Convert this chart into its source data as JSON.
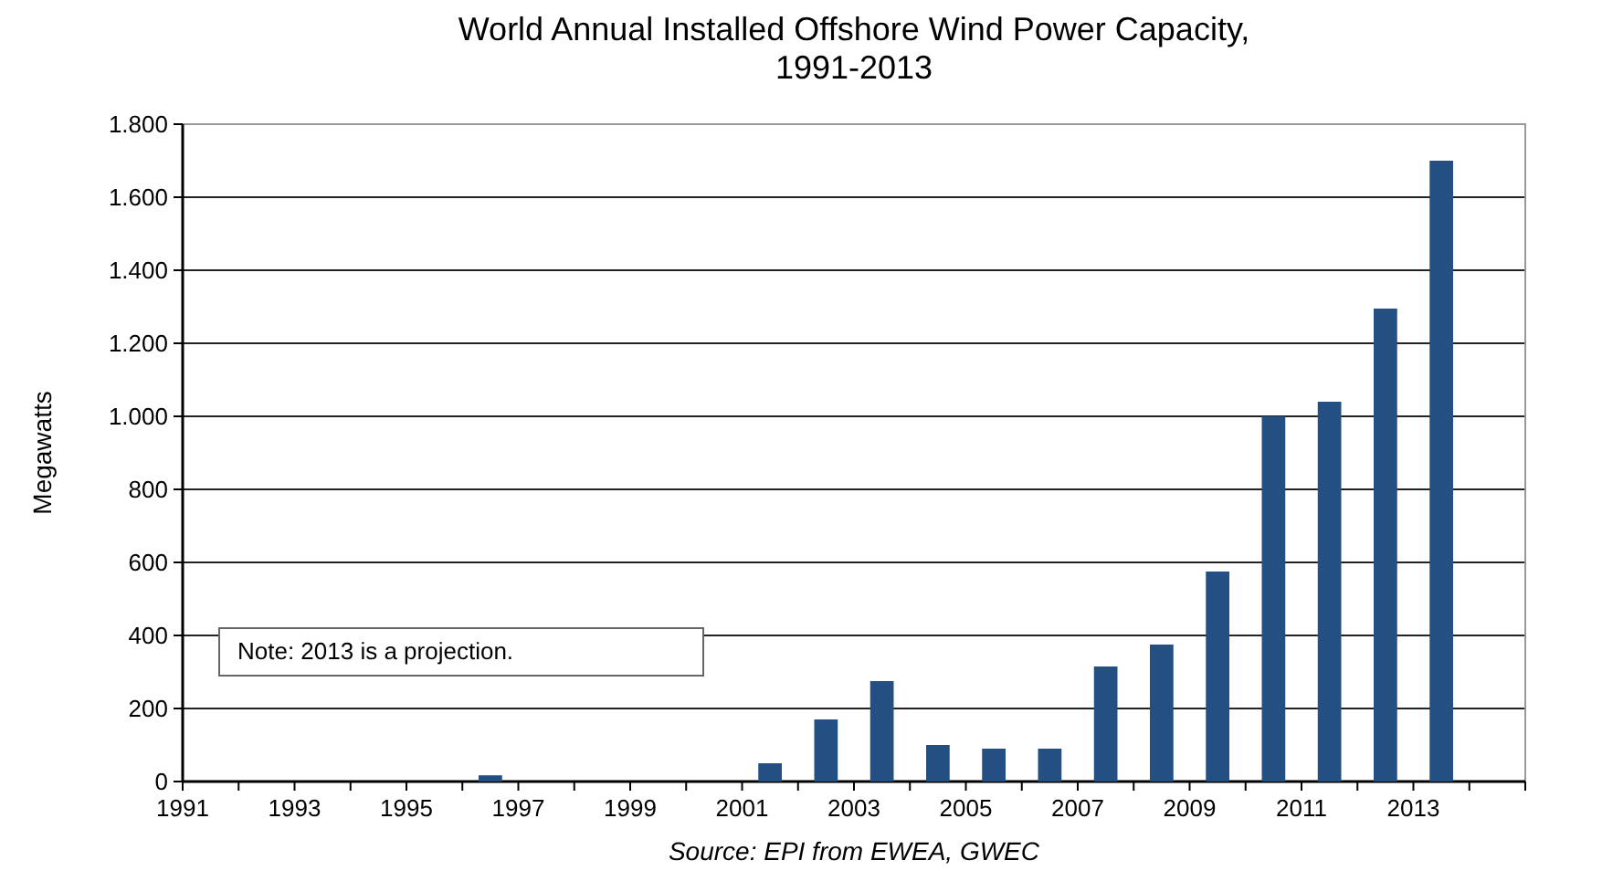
{
  "chart_data": {
    "type": "bar",
    "title": "World Annual Installed Offshore Wind Power Capacity,\n1991-2013",
    "ylabel": "Megawatts",
    "categories": [
      "1991",
      null,
      "1993",
      null,
      "1995",
      null,
      "1997",
      null,
      "1999",
      null,
      "2001",
      null,
      "2003",
      null,
      "2005",
      null,
      "2007",
      null,
      "2009",
      null,
      "2011",
      null,
      "2013"
    ],
    "values": [
      0,
      0,
      0,
      0,
      0,
      17,
      0,
      0,
      0,
      0,
      50,
      170,
      275,
      100,
      90,
      90,
      315,
      375,
      575,
      1000,
      1040,
      1295,
      1700
    ],
    "color": "#234f82",
    "ylim": [
      0,
      1800
    ],
    "yticks": [
      0,
      {
        "value": 200,
        "label": "200"
      },
      {
        "value": 400,
        "label": "400"
      },
      {
        "value": 600,
        "label": "600"
      },
      {
        "value": 800,
        "label": "800"
      },
      {
        "value": 1000,
        "label": "1.000"
      },
      {
        "value": 1200,
        "label": "1.200"
      },
      {
        "value": 1400,
        "label": "1.400"
      },
      {
        "value": 1600,
        "label": "1.600"
      },
      {
        "value": 1800,
        "label": "1.800"
      }
    ],
    "grid": "y",
    "annotations": [
      "Note: 2013 is a projection.",
      "Source: EPI from EWEA, GWEC"
    ]
  }
}
